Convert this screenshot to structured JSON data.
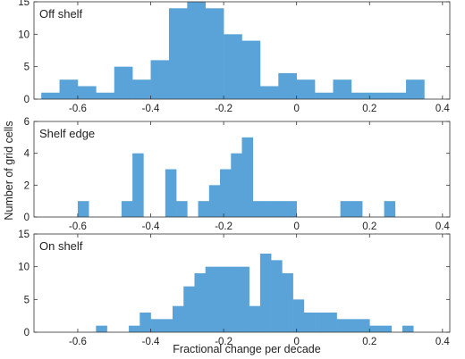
{
  "figure": {
    "ylabel": "Number of grid cells",
    "xlabel": "Fractional change per decade",
    "bar_color": "#5aa3d8"
  },
  "chart_data": [
    {
      "type": "bar",
      "title": "Off shelf",
      "bin_width": 0.05,
      "xlim": [
        -0.72,
        0.42
      ],
      "ylim": [
        0,
        15
      ],
      "xticks": [
        -0.6,
        -0.4,
        -0.2,
        0,
        0.2,
        0.4
      ],
      "xtick_labels": [
        "-0.6",
        "-0.4",
        "-0.2",
        "0",
        "0.2",
        "0.4"
      ],
      "yticks": [
        0,
        5,
        10,
        15
      ],
      "ytick_labels": [
        "0",
        "5",
        "10",
        "15"
      ],
      "bin_centers": [
        -0.675,
        -0.625,
        -0.575,
        -0.525,
        -0.475,
        -0.425,
        -0.375,
        -0.325,
        -0.275,
        -0.225,
        -0.175,
        -0.125,
        -0.075,
        -0.025,
        0.025,
        0.075,
        0.125,
        0.175,
        0.225,
        0.275,
        0.325
      ],
      "values": [
        1,
        3,
        2,
        1,
        5,
        3,
        6,
        14,
        15,
        14,
        10,
        9,
        2,
        4,
        3,
        1,
        3,
        1,
        1,
        1,
        3
      ]
    },
    {
      "type": "bar",
      "title": "Shelf edge",
      "bin_width": 0.03,
      "xlim": [
        -0.72,
        0.42
      ],
      "ylim": [
        0,
        6
      ],
      "xticks": [
        -0.6,
        -0.4,
        -0.2,
        0,
        0.2,
        0.4
      ],
      "xtick_labels": [
        "-0.6",
        "-0.4",
        "-0.2",
        "0",
        "0.2",
        "0.4"
      ],
      "yticks": [
        0,
        2,
        4,
        6
      ],
      "ytick_labels": [
        "0",
        "2",
        "4",
        "6"
      ],
      "bin_centers": [
        -0.585,
        -0.465,
        -0.435,
        -0.345,
        -0.315,
        -0.255,
        -0.225,
        -0.195,
        -0.165,
        -0.135,
        -0.105,
        -0.075,
        -0.045,
        -0.015,
        0.135,
        0.165,
        0.255
      ],
      "values": [
        1,
        1,
        4,
        3,
        1,
        1,
        2,
        3,
        4,
        5,
        1,
        1,
        1,
        1,
        1,
        1,
        1
      ]
    },
    {
      "type": "bar",
      "title": "On shelf",
      "bin_width": 0.03,
      "xlim": [
        -0.72,
        0.42
      ],
      "ylim": [
        0,
        15
      ],
      "xticks": [
        -0.6,
        -0.4,
        -0.2,
        0,
        0.2,
        0.4
      ],
      "xtick_labels": [
        "-0.6",
        "-0.4",
        "-0.2",
        "0",
        "0.2",
        "0.4"
      ],
      "yticks": [
        0,
        5,
        10,
        15
      ],
      "ytick_labels": [
        "0",
        "5",
        "10",
        "15"
      ],
      "bin_centers": [
        -0.535,
        -0.445,
        -0.415,
        -0.385,
        -0.355,
        -0.325,
        -0.295,
        -0.265,
        -0.235,
        -0.205,
        -0.175,
        -0.145,
        -0.115,
        -0.085,
        -0.055,
        -0.025,
        0.005,
        0.035,
        0.065,
        0.095,
        0.125,
        0.155,
        0.185,
        0.215,
        0.245,
        0.305
      ],
      "values": [
        1,
        1,
        3,
        2,
        2,
        4,
        7,
        9,
        10,
        10,
        10,
        10,
        4,
        12,
        11,
        9,
        5,
        3,
        3,
        3,
        2,
        2,
        2,
        1,
        1,
        1
      ]
    }
  ]
}
